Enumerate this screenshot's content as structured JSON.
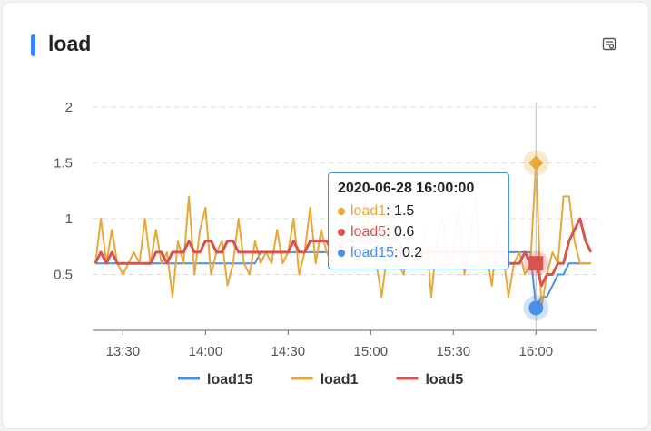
{
  "chart_data": {
    "type": "line",
    "title": "load",
    "tooltip": "2020-06-28 16:00:00",
    "x": [
      "13:20",
      "13:22",
      "13:24",
      "13:26",
      "13:28",
      "13:30",
      "13:32",
      "13:34",
      "13:36",
      "13:38",
      "13:40",
      "13:42",
      "13:44",
      "13:46",
      "13:48",
      "13:50",
      "13:52",
      "13:54",
      "13:56",
      "13:58",
      "14:00",
      "14:02",
      "14:04",
      "14:06",
      "14:08",
      "14:10",
      "14:12",
      "14:14",
      "14:16",
      "14:18",
      "14:20",
      "14:22",
      "14:24",
      "14:26",
      "14:28",
      "14:30",
      "14:32",
      "14:34",
      "14:36",
      "14:38",
      "14:40",
      "14:42",
      "14:44",
      "14:46",
      "14:48",
      "14:50",
      "14:52",
      "14:54",
      "14:56",
      "14:58",
      "15:00",
      "15:02",
      "15:04",
      "15:06",
      "15:08",
      "15:10",
      "15:12",
      "15:14",
      "15:16",
      "15:18",
      "15:20",
      "15:22",
      "15:24",
      "15:26",
      "15:28",
      "15:30",
      "15:32",
      "15:34",
      "15:36",
      "15:38",
      "15:40",
      "15:42",
      "15:44",
      "15:46",
      "15:48",
      "15:50",
      "15:52",
      "15:54",
      "15:56",
      "15:58",
      "16:00",
      "16:02",
      "16:04",
      "16:06",
      "16:08",
      "16:10",
      "16:12",
      "16:14",
      "16:16",
      "16:18",
      "16:20"
    ],
    "series": [
      {
        "name": "load15",
        "color": "#4a8fe7",
        "values": [
          0.6,
          0.6,
          0.6,
          0.6,
          0.6,
          0.6,
          0.6,
          0.6,
          0.6,
          0.6,
          0.6,
          0.6,
          0.6,
          0.6,
          0.6,
          0.6,
          0.6,
          0.6,
          0.6,
          0.6,
          0.6,
          0.6,
          0.6,
          0.6,
          0.6,
          0.6,
          0.6,
          0.6,
          0.6,
          0.6,
          0.7,
          0.7,
          0.7,
          0.7,
          0.7,
          0.7,
          0.7,
          0.7,
          0.7,
          0.7,
          0.7,
          0.7,
          0.7,
          0.7,
          0.7,
          0.7,
          0.7,
          0.7,
          0.7,
          0.7,
          0.7,
          0.7,
          0.7,
          0.7,
          0.7,
          0.7,
          0.7,
          0.7,
          0.7,
          0.7,
          0.7,
          0.7,
          0.7,
          0.7,
          0.7,
          0.7,
          0.7,
          0.7,
          0.7,
          0.7,
          0.7,
          0.7,
          0.7,
          0.7,
          0.7,
          0.7,
          0.7,
          0.7,
          0.7,
          0.7,
          0.2,
          0.3,
          0.3,
          0.4,
          0.5,
          0.5,
          0.6,
          0.6,
          0.6,
          0.6,
          0.6
        ]
      },
      {
        "name": "load1",
        "color": "#e8a838",
        "values": [
          0.6,
          1.0,
          0.6,
          0.9,
          0.6,
          0.5,
          0.6,
          0.7,
          0.6,
          1.0,
          0.6,
          0.9,
          0.6,
          0.7,
          0.3,
          0.8,
          0.6,
          1.2,
          0.5,
          0.9,
          1.1,
          0.5,
          0.7,
          0.8,
          0.4,
          0.6,
          1.0,
          0.6,
          0.5,
          0.8,
          0.6,
          0.7,
          0.6,
          0.9,
          0.6,
          0.7,
          1.0,
          0.5,
          0.7,
          1.1,
          0.6,
          0.9,
          0.7,
          0.6,
          0.8,
          0.6,
          1.0,
          0.7,
          0.6,
          1.2,
          0.8,
          0.6,
          0.3,
          0.7,
          1.1,
          0.6,
          0.5,
          0.9,
          0.7,
          0.6,
          0.9,
          0.3,
          0.8,
          1.0,
          0.6,
          0.7,
          1.1,
          0.5,
          0.8,
          1.2,
          0.6,
          0.7,
          0.4,
          0.9,
          0.7,
          0.3,
          0.6,
          0.7,
          0.5,
          0.6,
          1.5,
          0.2,
          0.5,
          0.7,
          0.6,
          1.2,
          1.2,
          0.8,
          0.6,
          0.6,
          0.6
        ]
      },
      {
        "name": "load5",
        "color": "#d9534f",
        "values": [
          0.6,
          0.7,
          0.6,
          0.7,
          0.6,
          0.6,
          0.6,
          0.6,
          0.6,
          0.6,
          0.6,
          0.7,
          0.7,
          0.6,
          0.7,
          0.7,
          0.7,
          0.8,
          0.7,
          0.7,
          0.8,
          0.8,
          0.7,
          0.7,
          0.8,
          0.8,
          0.7,
          0.7,
          0.7,
          0.7,
          0.7,
          0.7,
          0.7,
          0.7,
          0.7,
          0.7,
          0.8,
          0.7,
          0.7,
          0.8,
          0.8,
          0.8,
          0.8,
          0.7,
          0.7,
          0.8,
          0.8,
          0.8,
          0.8,
          0.8,
          0.8,
          0.8,
          0.7,
          0.7,
          0.8,
          0.8,
          0.7,
          0.7,
          0.7,
          0.7,
          0.7,
          0.7,
          0.7,
          0.7,
          0.7,
          0.7,
          0.7,
          0.7,
          0.7,
          0.7,
          0.7,
          0.7,
          0.7,
          0.7,
          0.7,
          0.6,
          0.6,
          0.6,
          0.7,
          0.6,
          0.6,
          0.4,
          0.5,
          0.5,
          0.6,
          0.6,
          0.8,
          0.9,
          1.0,
          0.8,
          0.7
        ]
      }
    ],
    "xlim": [
      "13:19",
      "16:22"
    ],
    "xticks": [
      "13:30",
      "14:00",
      "14:30",
      "15:00",
      "15:30",
      "16:00"
    ],
    "ylim": [
      0,
      2
    ],
    "yticks": [
      0.5,
      1,
      1.5,
      2
    ],
    "grid": true
  }
}
